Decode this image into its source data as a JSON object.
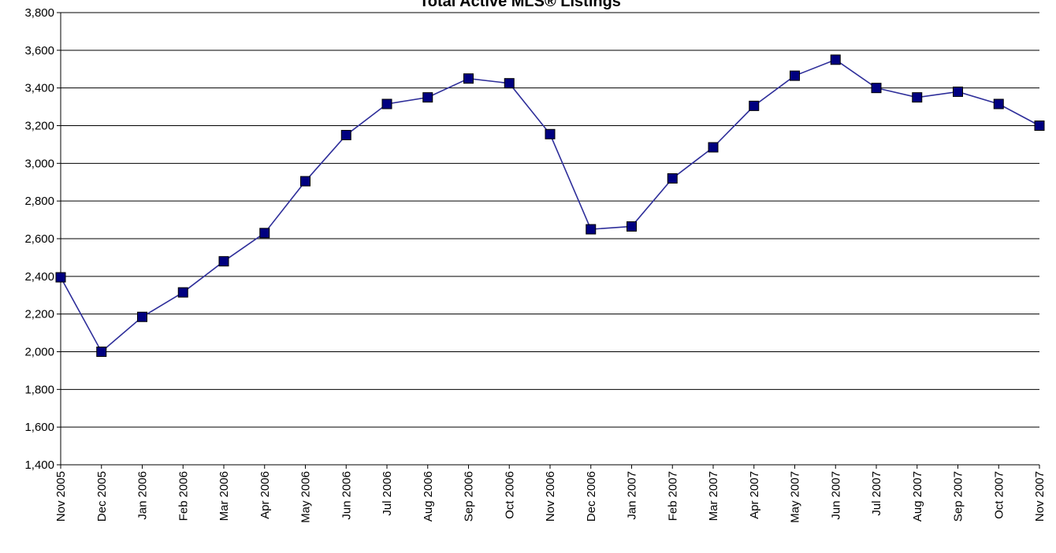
{
  "chart_data": {
    "type": "line",
    "title": "Total Active MLS® Listings",
    "xlabel": "",
    "ylabel": "",
    "ylim": [
      1400,
      3800
    ],
    "ytick_step": 200,
    "grid": true,
    "legend": "none",
    "categories": [
      "Nov 2005",
      "Dec 2005",
      "Jan 2006",
      "Feb 2006",
      "Mar 2006",
      "Apr 2006",
      "May 2006",
      "Jun 2006",
      "Jul 2006",
      "Aug 2006",
      "Sep 2006",
      "Oct 2006",
      "Nov 2006",
      "Dec 2006",
      "Jan 2007",
      "Feb 2007",
      "Mar 2007",
      "Apr 2007",
      "May 2007",
      "Jun 2007",
      "Jul 2007",
      "Aug 2007",
      "Sep 2007",
      "Oct 2007",
      "Nov 2007"
    ],
    "series": [
      {
        "values": [
          2395,
          2000,
          2185,
          2315,
          2480,
          2630,
          2905,
          3150,
          3315,
          3350,
          3450,
          3425,
          3155,
          2650,
          2665,
          2920,
          3085,
          3305,
          3465,
          3550,
          3400,
          3350,
          3380,
          3315,
          3200
        ],
        "color": "#2E2E9A",
        "marker_color": "#000080"
      }
    ]
  }
}
